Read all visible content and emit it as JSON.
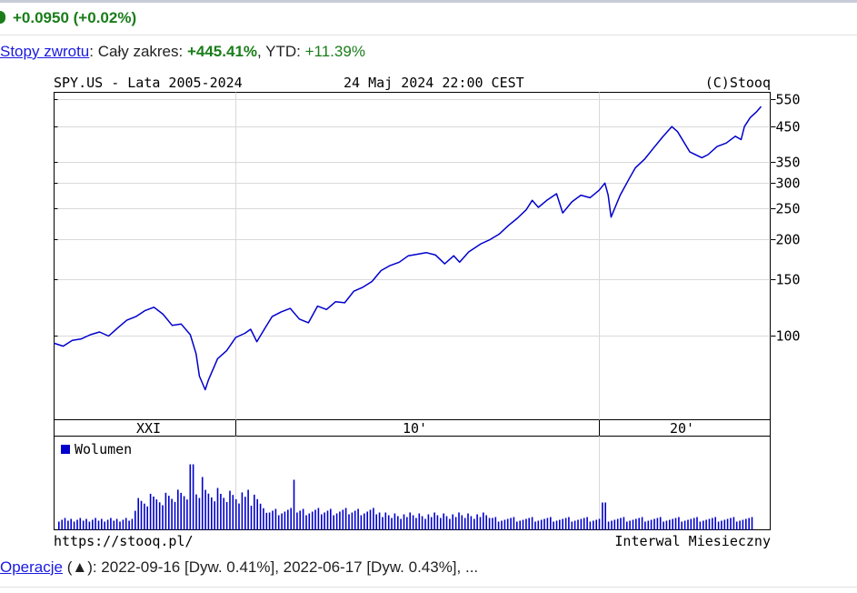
{
  "quote": {
    "change_text": "+0.0950 (+0.02%)",
    "color": "#1a7d1a"
  },
  "returns": {
    "link_label": "Stopy zwrotu",
    "range_label": ": Cały zakres: ",
    "range_value": "+445.41%",
    "ytd_label": ", YTD: ",
    "ytd_value": "+11.39%"
  },
  "chart_header": {
    "left": "SPY.US - Lata 2005-2024",
    "center": "24 Maj 2024 22:00 CEST",
    "right": "(C)Stooq"
  },
  "chart_footer": {
    "left": "https://stooq.pl/",
    "right": "Interwal Miesieczny"
  },
  "operations": {
    "link_label": "Operacje",
    "text": " (▲): 2022-09-16 [Dyw. 0.41%], 2022-06-17 [Dyw. 0.43%], ..."
  },
  "chart_data": [
    {
      "type": "line",
      "series": [
        {
          "line_color": "#0000cc",
          "x": [
            2004.92,
            2005.17,
            2005.42,
            2005.67,
            2005.92,
            2006.17,
            2006.42,
            2006.67,
            2006.92,
            2007.17,
            2007.42,
            2007.67,
            2007.92,
            2008.17,
            2008.42,
            2008.67,
            2008.83,
            2008.92,
            2009.08,
            2009.17,
            2009.42,
            2009.67,
            2009.92,
            2010.17,
            2010.33,
            2010.5,
            2010.75,
            2010.92,
            2011.17,
            2011.42,
            2011.67,
            2011.92,
            2012.17,
            2012.42,
            2012.67,
            2012.92,
            2013.17,
            2013.42,
            2013.67,
            2013.92,
            2014.17,
            2014.42,
            2014.67,
            2014.92,
            2015.17,
            2015.42,
            2015.67,
            2015.92,
            2016.08,
            2016.33,
            2016.67,
            2016.92,
            2017.17,
            2017.42,
            2017.67,
            2017.92,
            2018.08,
            2018.25,
            2018.5,
            2018.75,
            2018.92,
            2019.17,
            2019.42,
            2019.67,
            2019.92,
            2020.08,
            2020.17,
            2020.25,
            2020.5,
            2020.75,
            2020.92,
            2021.17,
            2021.42,
            2021.67,
            2021.92,
            2022.08,
            2022.42,
            2022.75,
            2022.92,
            2023.17,
            2023.42,
            2023.67,
            2023.83,
            2023.92,
            2024.08,
            2024.25,
            2024.38
          ],
          "y": [
            95,
            93,
            97,
            98,
            101,
            103,
            100,
            106,
            112,
            115,
            120,
            123,
            117,
            108,
            109,
            101,
            88,
            75,
            68,
            73,
            85,
            90,
            99,
            102,
            105,
            96,
            107,
            115,
            119,
            122,
            113,
            110,
            124,
            121,
            128,
            127,
            138,
            142,
            148,
            160,
            166,
            170,
            178,
            180,
            182,
            179,
            168,
            178,
            170,
            183,
            194,
            200,
            208,
            221,
            233,
            248,
            265,
            252,
            266,
            278,
            242,
            262,
            275,
            270,
            285,
            300,
            275,
            235,
            275,
            310,
            335,
            356,
            386,
            418,
            450,
            434,
            375,
            360,
            368,
            390,
            400,
            420,
            410,
            450,
            480,
            500,
            520
          ]
        }
      ],
      "y_tick_labels": [
        "550",
        "450",
        "350",
        "300",
        "250",
        "200",
        "150",
        "100"
      ],
      "y_scale": "log",
      "x_tick_labels": [
        "XXI",
        "10'",
        "20'"
      ],
      "grid": true
    },
    {
      "type": "bar",
      "title": "Wolumen",
      "bar_color": "#0000cc"
    }
  ]
}
